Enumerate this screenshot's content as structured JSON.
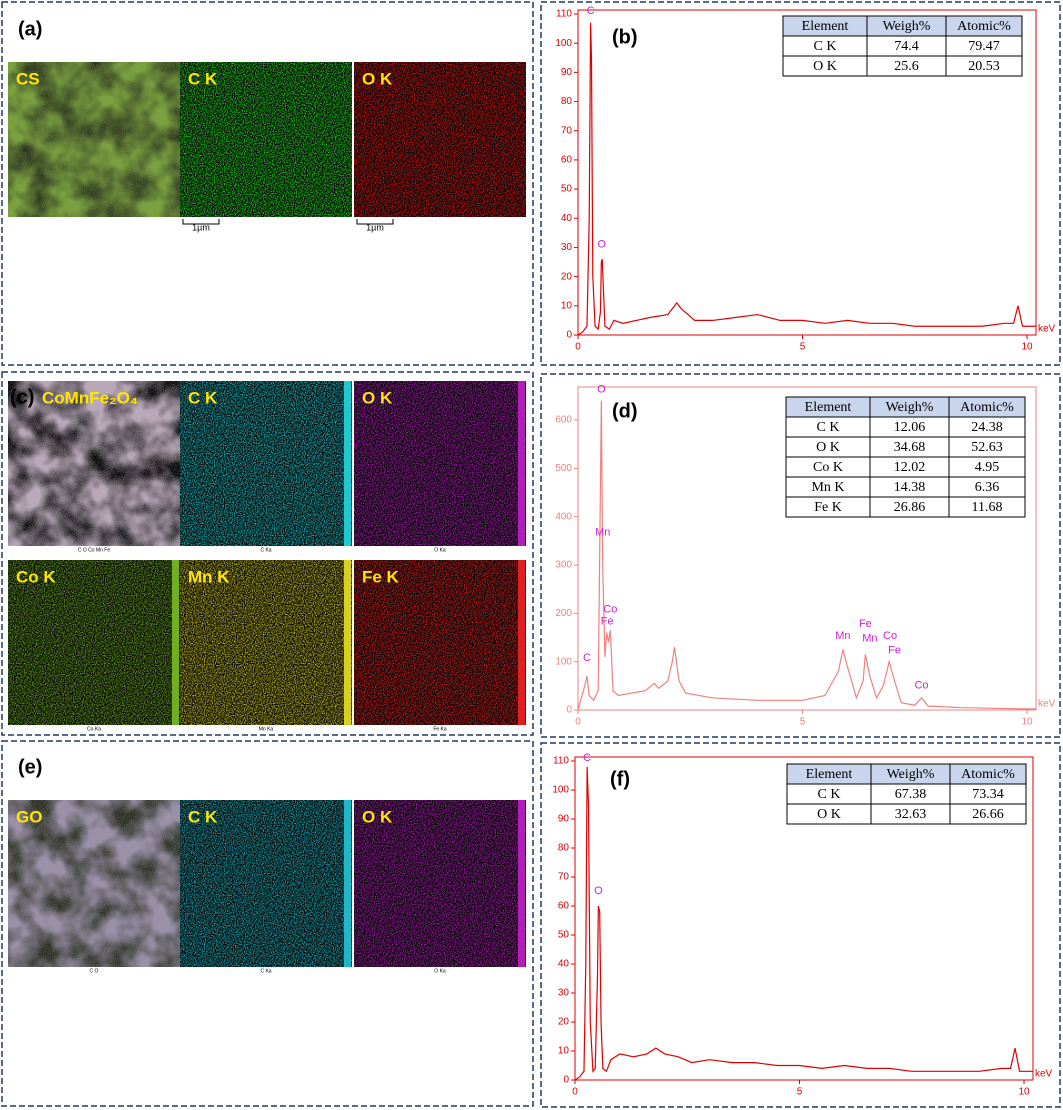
{
  "panel_labels": [
    "(a)",
    "(b)",
    "(c)",
    "(d)",
    "(e)",
    "(f)"
  ],
  "maps": [
    {
      "tiles": [
        {
          "label": "CS",
          "color": "#7aa040"
        },
        {
          "label": "C K",
          "color": "#22e022",
          "scale_bar": "1µm"
        },
        {
          "label": "O K",
          "color": "#e01818",
          "scale_bar": "1µm"
        }
      ]
    },
    {
      "tiles": [
        {
          "label": "CoMnFe₂O₄",
          "color": "#b8a8b8",
          "caption": "C O Co Mn Fe"
        },
        {
          "label": "C K",
          "color": "#20c8d0",
          "caption": "C Ka"
        },
        {
          "label": "O K",
          "color": "#b020b8",
          "caption": "O Ka"
        },
        {
          "label": "Co K",
          "color": "#70b020",
          "caption": "Co Ka"
        },
        {
          "label": "Mn K",
          "color": "#d8d020",
          "caption": "Mn Ka"
        },
        {
          "label": "Fe K",
          "color": "#e02020",
          "caption": "Fe Ka"
        }
      ]
    },
    {
      "tiles": [
        {
          "label": "GO",
          "color": "#9a90a8",
          "caption": "C O"
        },
        {
          "label": "C K",
          "color": "#20b8c8",
          "caption": "C Ka"
        },
        {
          "label": "O K",
          "color": "#b020b8",
          "caption": "O Ka"
        }
      ]
    }
  ],
  "chart_data": [
    {
      "type": "line",
      "color": "#e00000",
      "xlabel": "keV",
      "x": [
        0,
        0.1,
        0.2,
        0.25,
        0.28,
        0.3,
        0.33,
        0.38,
        0.45,
        0.5,
        0.52,
        0.54,
        0.56,
        0.6,
        0.7,
        0.8,
        1.0,
        1.3,
        1.6,
        2.0,
        2.2,
        2.3,
        2.6,
        3.0,
        3.5,
        4.0,
        4.5,
        5.0,
        5.5,
        6.0,
        6.5,
        7.0,
        7.5,
        8.0,
        8.5,
        9.0,
        9.5,
        9.7,
        9.8,
        9.9,
        10.2
      ],
      "values": [
        0,
        1,
        3,
        40,
        107,
        95,
        20,
        3,
        2,
        8,
        25,
        26,
        18,
        3,
        2,
        5,
        4,
        5,
        6,
        7,
        11,
        9,
        5,
        5,
        6,
        7,
        5,
        5,
        4,
        5,
        4,
        4,
        3,
        3,
        3,
        3,
        4,
        4,
        10,
        3,
        3
      ],
      "xlim": [
        0,
        10.2
      ],
      "xticks": [
        0,
        5,
        10
      ],
      "ylim": [
        0,
        110
      ],
      "yticks": [
        0,
        10,
        20,
        30,
        40,
        50,
        60,
        70,
        80,
        90,
        100,
        110
      ],
      "annotations": [
        {
          "text": "C",
          "x": 0.28,
          "y": 109
        },
        {
          "text": "O",
          "x": 0.53,
          "y": 29
        }
      ],
      "table": {
        "columns": [
          "Element",
          "Weigh%",
          "Atomic%"
        ],
        "rows": [
          [
            "C K",
            74.4,
            79.47
          ],
          [
            "O K",
            25.6,
            20.53
          ]
        ]
      }
    },
    {
      "type": "line",
      "color": "#f08080",
      "xlabel": "keV",
      "x": [
        0,
        0.15,
        0.2,
        0.25,
        0.35,
        0.45,
        0.52,
        0.55,
        0.6,
        0.64,
        0.68,
        0.72,
        0.78,
        0.9,
        1.2,
        1.5,
        1.7,
        1.8,
        2.0,
        2.1,
        2.15,
        2.25,
        2.4,
        3,
        4,
        5,
        5.5,
        5.8,
        5.9,
        6.0,
        6.2,
        6.35,
        6.4,
        6.5,
        6.65,
        6.8,
        6.93,
        7.05,
        7.2,
        7.5,
        7.65,
        7.8,
        8.5,
        9.5,
        10.2
      ],
      "values": [
        0,
        50,
        70,
        30,
        20,
        40,
        640,
        300,
        110,
        160,
        140,
        165,
        40,
        30,
        35,
        40,
        55,
        45,
        60,
        100,
        130,
        60,
        35,
        25,
        20,
        20,
        30,
        80,
        125,
        90,
        25,
        60,
        115,
        70,
        25,
        50,
        100,
        60,
        15,
        10,
        25,
        8,
        5,
        3,
        2
      ],
      "xlim": [
        0,
        10.2
      ],
      "xticks": [
        0,
        5,
        10
      ],
      "ylim": [
        0,
        660
      ],
      "yticks": [
        0,
        100,
        200,
        300,
        400,
        500,
        600
      ],
      "annotations": [
        {
          "text": "O",
          "x": 0.52,
          "y": 650
        },
        {
          "text": "Mn",
          "x": 0.55,
          "y": 355
        },
        {
          "text": "Co",
          "x": 0.72,
          "y": 195
        },
        {
          "text": "Fe",
          "x": 0.65,
          "y": 170
        },
        {
          "text": "C",
          "x": 0.2,
          "y": 95
        },
        {
          "text": "Mn",
          "x": 5.9,
          "y": 140
        },
        {
          "text": "Fe",
          "x": 6.4,
          "y": 165
        },
        {
          "text": "Mn",
          "x": 6.5,
          "y": 135
        },
        {
          "text": "Co",
          "x": 6.95,
          "y": 140
        },
        {
          "text": "Fe",
          "x": 7.05,
          "y": 110
        },
        {
          "text": "Co",
          "x": 7.65,
          "y": 38
        }
      ],
      "table": {
        "columns": [
          "Element",
          "Weigh%",
          "Atomic%"
        ],
        "rows": [
          [
            "C K",
            12.06,
            24.38
          ],
          [
            "O K",
            34.68,
            52.63
          ],
          [
            "Co K",
            12.02,
            4.95
          ],
          [
            "Mn K",
            14.38,
            6.36
          ],
          [
            "Fe K",
            26.86,
            11.68
          ]
        ]
      }
    },
    {
      "type": "line",
      "color": "#e00000",
      "xlabel": "keV",
      "x": [
        0,
        0.1,
        0.2,
        0.24,
        0.27,
        0.3,
        0.34,
        0.4,
        0.45,
        0.5,
        0.52,
        0.55,
        0.58,
        0.62,
        0.7,
        0.8,
        1.0,
        1.3,
        1.6,
        1.8,
        2.0,
        2.3,
        2.6,
        3.0,
        3.5,
        4.0,
        4.5,
        5.0,
        5.5,
        6.0,
        6.5,
        7.0,
        7.5,
        8.0,
        8.5,
        9.0,
        9.5,
        9.7,
        9.8,
        9.9,
        10.2
      ],
      "values": [
        0,
        1,
        3,
        40,
        108,
        95,
        20,
        3,
        4,
        35,
        60,
        58,
        20,
        4,
        3,
        7,
        9,
        8,
        9,
        11,
        9,
        8,
        6,
        7,
        6,
        6,
        5,
        5,
        4,
        5,
        4,
        4,
        3,
        3,
        3,
        3,
        4,
        4,
        11,
        3,
        3
      ],
      "xlim": [
        0,
        10.2
      ],
      "xticks": [
        0,
        5,
        10
      ],
      "ylim": [
        0,
        110
      ],
      "yticks": [
        0,
        10,
        20,
        30,
        40,
        50,
        60,
        70,
        80,
        90,
        100,
        110
      ],
      "annotations": [
        {
          "text": "C",
          "x": 0.27,
          "y": 109
        },
        {
          "text": "O",
          "x": 0.52,
          "y": 63
        }
      ],
      "table": {
        "columns": [
          "Element",
          "Weigh%",
          "Atomic%"
        ],
        "rows": [
          [
            "C K",
            67.38,
            73.34
          ],
          [
            "O K",
            32.63,
            26.66
          ]
        ]
      }
    }
  ]
}
